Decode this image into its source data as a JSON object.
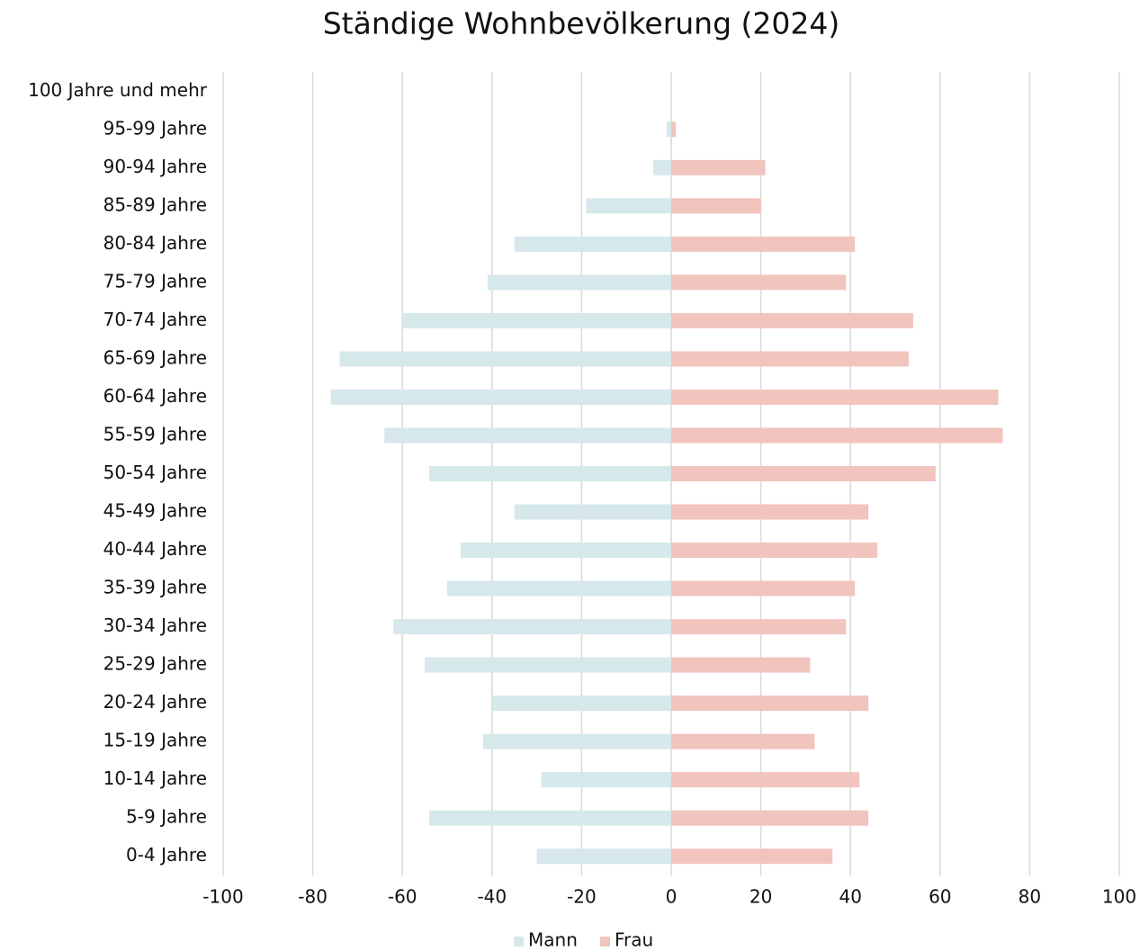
{
  "chart_data": {
    "type": "bar",
    "orientation": "horizontal",
    "title": "Ständige Wohnbevölkerung (2024)",
    "categories": [
      "100 Jahre und mehr",
      "95-99 Jahre",
      "90-94 Jahre",
      "85-89 Jahre",
      "80-84 Jahre",
      "75-79 Jahre",
      "70-74 Jahre",
      "65-69 Jahre",
      "60-64 Jahre",
      "55-59 Jahre",
      "50-54 Jahre",
      "45-49 Jahre",
      "40-44 Jahre",
      "35-39 Jahre",
      "30-34 Jahre",
      "25-29 Jahre",
      "20-24 Jahre",
      "15-19 Jahre",
      "10-14 Jahre",
      "5-9 Jahre",
      "0-4 Jahre"
    ],
    "series": [
      {
        "name": "Mann",
        "color": "#d6e8ea",
        "values": [
          0,
          -1,
          -4,
          -19,
          -35,
          -41,
          -60,
          -74,
          -76,
          -64,
          -54,
          -35,
          -47,
          -50,
          -62,
          -55,
          -40,
          -42,
          -29,
          -54,
          -30
        ]
      },
      {
        "name": "Frau",
        "color": "#f2c4be",
        "values": [
          0,
          1,
          21,
          20,
          41,
          39,
          54,
          53,
          73,
          74,
          59,
          44,
          46,
          41,
          39,
          31,
          44,
          32,
          42,
          44,
          36
        ]
      }
    ],
    "xlim": [
      -100,
      100
    ],
    "xticks": [
      -100,
      -80,
      -60,
      -40,
      -20,
      0,
      20,
      40,
      60,
      80,
      100
    ],
    "grid": true,
    "legend": "bottom"
  }
}
